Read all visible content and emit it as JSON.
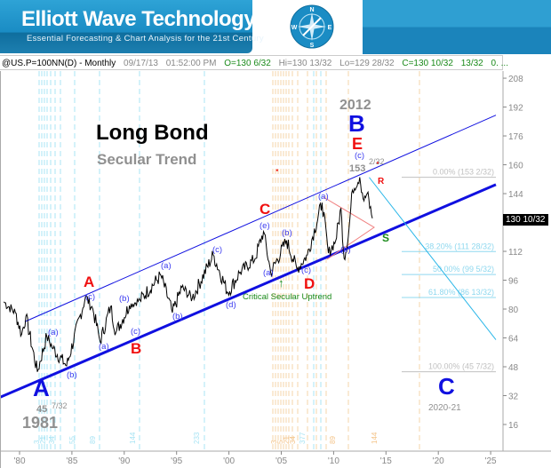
{
  "header": {
    "brand_title": "Elliott Wave Technology",
    "brand_subtitle": "Essential Forecasting & Chart Analysis for the 21st Century",
    "compass_letters": [
      "N",
      "E",
      "S",
      "W"
    ]
  },
  "ticker": {
    "symbol": "@US.P=100NN(D) - Monthly",
    "date": "09/17/13",
    "time": "01:52:00 PM",
    "open": "O=130 6/32",
    "high": "Hi=130 13/32",
    "low": "Lo=129 28/32",
    "close": "C=130 10/32",
    "change": "13/32",
    "more": "0. ..."
  },
  "colors": {
    "channel": "#1010e0",
    "projection": "#29b6e8",
    "fib": "#8fd8ef",
    "fib_zero": "#b0b0b0",
    "red": "#f01010",
    "green": "#1a8a1a"
  },
  "chart_data": {
    "type": "line",
    "title": "Long Bond",
    "subtitle": "Secular Trend",
    "series": [
      {
        "name": "@US.P Monthly",
        "points": [
          [
            1978.5,
            84
          ],
          [
            1979.6,
            78
          ],
          [
            1980.2,
            66
          ],
          [
            1980.6,
            76
          ],
          [
            1981.7,
            45.2
          ],
          [
            1982.6,
            65
          ],
          [
            1983.2,
            58
          ],
          [
            1984.5,
            48.5
          ],
          [
            1986.3,
            87
          ],
          [
            1987.0,
            80
          ],
          [
            1987.7,
            62
          ],
          [
            1988.7,
            81.5
          ],
          [
            1989.2,
            67
          ],
          [
            1990.5,
            82
          ],
          [
            1991.5,
            85
          ],
          [
            1993.5,
            98.7
          ],
          [
            1994.6,
            78
          ],
          [
            1995.5,
            92
          ],
          [
            1996.5,
            86
          ],
          [
            1998.5,
            110
          ],
          [
            1999.9,
            89
          ],
          [
            2001.0,
            100
          ],
          [
            2002.5,
            108
          ],
          [
            2003.3,
            123
          ],
          [
            2004.0,
            100
          ],
          [
            2005.5,
            118
          ],
          [
            2006.5,
            102
          ],
          [
            2007.5,
            110
          ],
          [
            2008.9,
            139
          ],
          [
            2009.5,
            111
          ],
          [
            2010.2,
            118
          ],
          [
            2010.7,
            136
          ],
          [
            2011.0,
            108
          ],
          [
            2011.4,
            120
          ],
          [
            2011.8,
            146
          ],
          [
            2012.5,
            153.06
          ],
          [
            2012.9,
            140
          ],
          [
            2013.2,
            144
          ],
          [
            2013.7,
            130.3
          ]
        ]
      }
    ],
    "channel_upper": [
      [
        1980.5,
        73
      ],
      [
        2025.5,
        187.5
      ]
    ],
    "channel_lower": [
      [
        1978.1,
        31
      ],
      [
        2025.5,
        149
      ]
    ],
    "projection": [
      [
        2013.4,
        153
      ],
      [
        2025.5,
        63
      ]
    ],
    "fib_levels": [
      {
        "label": "0.00% (153 2/32)",
        "value": 153.06
      },
      {
        "label": "38.20% (111 28/32)",
        "value": 111.88
      },
      {
        "label": "50.00% (99 5/32)",
        "value": 99.16
      },
      {
        "label": "61.80% (86 13/32)",
        "value": 86.41
      },
      {
        "label": "100.00% (45 7/32)",
        "value": 45.22
      }
    ],
    "last_price_label": "130 10/32",
    "y_ticks": [
      "208",
      "192",
      "176",
      "160",
      "144",
      "112",
      "96",
      "80",
      "64",
      "48",
      "32",
      "16"
    ],
    "y_tick_values": [
      208,
      192,
      176,
      160,
      144,
      112,
      96,
      80,
      64,
      48,
      32,
      16
    ],
    "x_ticks": [
      "'80",
      "'85",
      "'90",
      "'95",
      "'00",
      "'05",
      "'10",
      "'15",
      "'20",
      "'25"
    ],
    "x_tick_values": [
      1980,
      1985,
      1990,
      1995,
      2000,
      2005,
      2010,
      2015,
      2020,
      2025
    ],
    "ylim": [
      0,
      220
    ],
    "xlim": [
      1978.1,
      2028.5
    ],
    "time_cycles_1981": [
      "3",
      "21",
      "34",
      "55",
      "89",
      "144",
      "233"
    ],
    "time_cycles_2012": [
      "3",
      "5",
      "21",
      "34",
      "377",
      "89",
      "144"
    ],
    "annotations": {
      "A_blue": "A",
      "low_price": "45",
      "low_frac": "7/32",
      "low_year": "1981",
      "B_blue": "B",
      "peak_year": "2012",
      "E_red": "E",
      "peak_price": "153",
      "peak_frac": "2/32",
      "C_blue": "C",
      "c_target": "2020-21",
      "A_red": "A",
      "B_red": "B",
      "C_red": "C",
      "D_red": "D",
      "R": "R",
      "S": "S",
      "critical": "Critical Secular Uptrend",
      "waves": [
        "(a)",
        "(b)",
        "(c)",
        "(a)",
        "(b)",
        "(c)",
        "(a)",
        "(b)",
        "(c)",
        "(d)",
        "(e)",
        "(a)",
        "(b)",
        "(c)",
        "(a)",
        "(b)",
        "(c)"
      ]
    }
  }
}
